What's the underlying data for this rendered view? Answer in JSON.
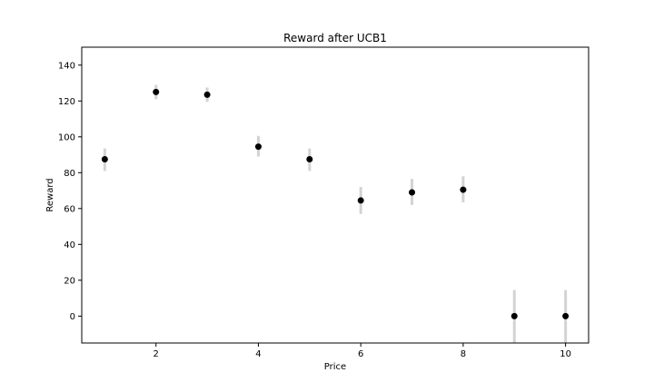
{
  "chart_data": {
    "type": "scatter",
    "title": "Reward after UCB1",
    "xlabel": "Price",
    "ylabel": "Reward",
    "xlim": [
      0.55,
      10.45
    ],
    "ylim": [
      -15,
      150
    ],
    "xticks": [
      2,
      4,
      6,
      8,
      10
    ],
    "yticks": [
      0,
      20,
      40,
      60,
      80,
      100,
      120,
      140
    ],
    "grid": false,
    "series": [
      {
        "x": [
          1,
          2,
          3,
          4,
          5,
          6,
          7,
          8,
          9,
          10
        ],
        "y": [
          87.5,
          125,
          123.5,
          94.5,
          87.5,
          64.5,
          69,
          70.5,
          0,
          0
        ],
        "error_low": [
          81,
          121,
          119.5,
          89,
          81,
          57,
          62,
          63.5,
          -15,
          -15
        ],
        "error_high": [
          93.5,
          129,
          127.5,
          100.5,
          93.5,
          72,
          76.5,
          78,
          14.5,
          14.5
        ]
      }
    ],
    "colors": {
      "marker": "#000000",
      "errorbar": "#d3d3d3",
      "axes": "#000000"
    }
  }
}
